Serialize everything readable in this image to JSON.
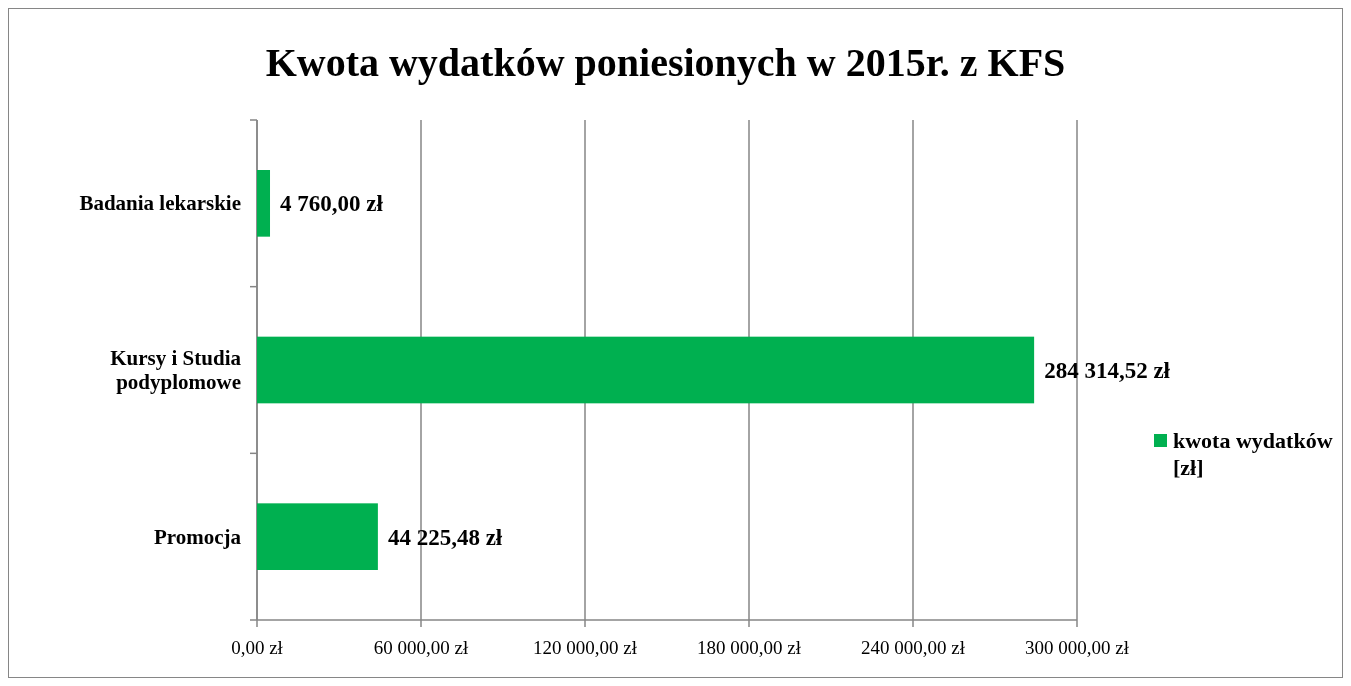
{
  "chart_data": {
    "type": "bar",
    "orientation": "horizontal",
    "title": "Kwota wydatków poniesionych w 2015r. z KFS",
    "categories": [
      "Badania lekarskie",
      "Kursy i Studia podyplomowe",
      "Promocja"
    ],
    "series": [
      {
        "name": "kwota wydatków [zł]",
        "color": "#00b050",
        "values": [
          4760,
          284314.52,
          44225.48
        ],
        "value_labels": [
          "4 760,00 zł",
          "284 314,52 zł",
          "44 225,48 zł"
        ]
      }
    ],
    "xlim": [
      0,
      300000
    ],
    "xticks": [
      {
        "value": 0,
        "label": "0,00 zł"
      },
      {
        "value": 60000,
        "label": "60 000,00 zł"
      },
      {
        "value": 120000,
        "label": "120 000,00 zł"
      },
      {
        "value": 180000,
        "label": "180 000,00 zł"
      },
      {
        "value": 240000,
        "label": "240 000,00 zł"
      },
      {
        "value": 300000,
        "label": "300 000,00 zł"
      }
    ],
    "grid": "x",
    "legend": "right"
  }
}
